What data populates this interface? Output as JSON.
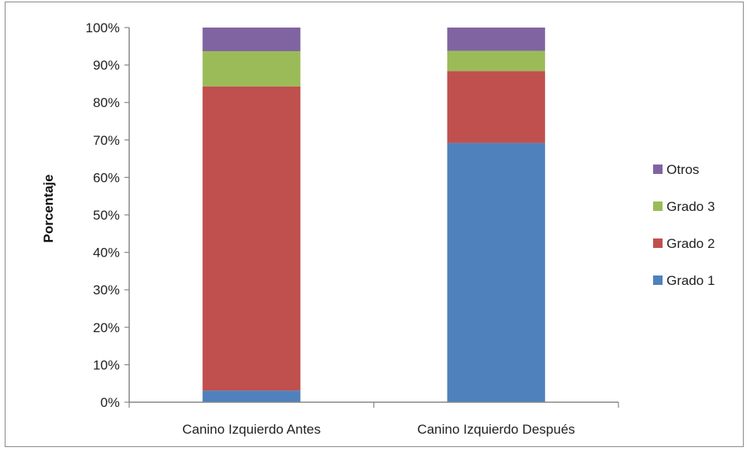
{
  "chart_data": {
    "type": "bar",
    "stacked": true,
    "title": "",
    "xlabel": "",
    "ylabel": "Porcentaje",
    "ylim": [
      0,
      100
    ],
    "y_ticks": [
      "0%",
      "10%",
      "20%",
      "30%",
      "40%",
      "50%",
      "60%",
      "70%",
      "80%",
      "90%",
      "100%"
    ],
    "y_tick_values": [
      0,
      10,
      20,
      30,
      40,
      50,
      60,
      70,
      80,
      90,
      100
    ],
    "categories": [
      "Canino Izquierdo Antes",
      "Canino Izquierdo Después"
    ],
    "series": [
      {
        "name": "Grado 1",
        "color": "#4f81bd",
        "values": [
          3.1,
          69.2
        ]
      },
      {
        "name": "Grado 2",
        "color": "#c0504d",
        "values": [
          81.2,
          19.2
        ]
      },
      {
        "name": "Grado 3",
        "color": "#9bbb59",
        "values": [
          9.4,
          5.4
        ]
      },
      {
        "name": "Otros",
        "color": "#8064a2",
        "values": [
          6.3,
          6.2
        ]
      }
    ],
    "legend_position": "right",
    "legend_order": [
      "Otros",
      "Grado 3",
      "Grado 2",
      "Grado 1"
    ],
    "grid": false,
    "axis_color": "#868686"
  }
}
